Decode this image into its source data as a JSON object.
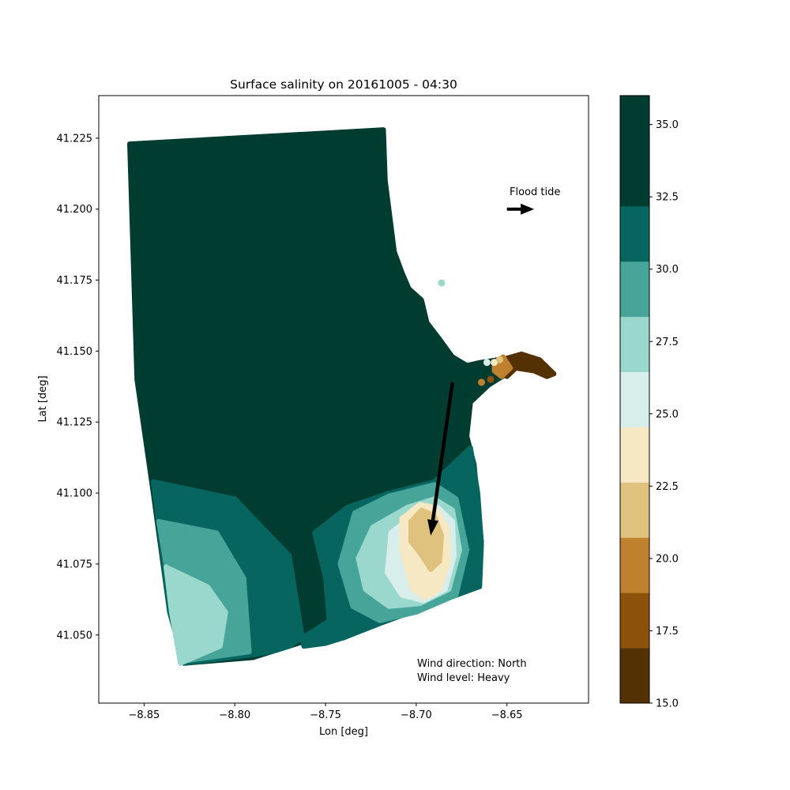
{
  "chart_data": {
    "type": "scatter",
    "title": "Surface salinity on 20161005 - 04:30",
    "xlabel": "Lon [deg]",
    "ylabel": "Lat [deg]",
    "xlim": [
      -8.875,
      -8.605
    ],
    "ylim": [
      41.026,
      41.24
    ],
    "x_ticks": [
      -8.85,
      -8.8,
      -8.75,
      -8.7,
      -8.65
    ],
    "x_tick_labels": [
      "−8.85",
      "−8.80",
      "−8.75",
      "−8.70",
      "−8.65"
    ],
    "y_ticks": [
      41.05,
      41.075,
      41.1,
      41.125,
      41.15,
      41.175,
      41.2,
      41.225
    ],
    "y_tick_labels": [
      "41.050",
      "41.075",
      "41.100",
      "41.125",
      "41.150",
      "41.175",
      "41.200",
      "41.225"
    ],
    "grid": false,
    "colorbar": {
      "levels": [
        15.0,
        16.909,
        18.818,
        20.727,
        22.636,
        24.545,
        26.455,
        28.364,
        30.273,
        32.182,
        34.091,
        36.0
      ],
      "colors": [
        "#543005",
        "#8c510a",
        "#bf812d",
        "#dfc27d",
        "#f6e8c3",
        "#d8eeeb",
        "#9ad8cd",
        "#46a598",
        "#07655f",
        "#003c30",
        "#003c30"
      ],
      "ticks": [
        15.0,
        17.5,
        20.0,
        22.5,
        25.0,
        27.5,
        30.0,
        32.5,
        35.0
      ],
      "tick_labels": [
        "15.0",
        "17.5",
        "20.0",
        "22.5",
        "25.0",
        "27.5",
        "30.0",
        "32.5",
        "35.0"
      ]
    },
    "regions": [
      {
        "salinity": 35,
        "color": "#003c30",
        "polygon": [
          [
            -8.858,
            41.223
          ],
          [
            -8.718,
            41.228
          ],
          [
            -8.717,
            41.21
          ],
          [
            -8.714,
            41.195
          ],
          [
            -8.712,
            41.185
          ],
          [
            -8.708,
            41.178
          ],
          [
            -8.704,
            41.172
          ],
          [
            -8.697,
            41.168
          ],
          [
            -8.694,
            41.16
          ],
          [
            -8.688,
            41.155
          ],
          [
            -8.68,
            41.148
          ],
          [
            -8.672,
            41.145
          ],
          [
            -8.665,
            41.146
          ],
          [
            -8.655,
            41.147
          ],
          [
            -8.65,
            41.142
          ],
          [
            -8.66,
            41.138
          ],
          [
            -8.67,
            41.132
          ],
          [
            -8.672,
            41.12
          ],
          [
            -8.668,
            41.11
          ],
          [
            -8.666,
            41.096
          ],
          [
            -8.664,
            41.083
          ],
          [
            -8.665,
            41.067
          ],
          [
            -8.79,
            41.042
          ],
          [
            -8.828,
            41.04
          ],
          [
            -8.836,
            41.058
          ],
          [
            -8.845,
            41.1
          ],
          [
            -8.854,
            41.14
          ]
        ]
      },
      {
        "salinity": 33,
        "color": "#07655f",
        "polygon": [
          [
            -8.845,
            41.104
          ],
          [
            -8.8,
            41.098
          ],
          [
            -8.77,
            41.078
          ],
          [
            -8.762,
            41.046
          ],
          [
            -8.75,
            41.047
          ],
          [
            -8.74,
            41.049
          ],
          [
            -8.72,
            41.054
          ],
          [
            -8.665,
            41.067
          ],
          [
            -8.664,
            41.082
          ],
          [
            -8.666,
            41.1
          ],
          [
            -8.67,
            41.116
          ],
          [
            -8.69,
            41.104
          ],
          [
            -8.715,
            41.1
          ],
          [
            -8.738,
            41.095
          ],
          [
            -8.756,
            41.086
          ],
          [
            -8.75,
            41.07
          ],
          [
            -8.748,
            41.055
          ],
          [
            -8.77,
            41.046
          ],
          [
            -8.78,
            41.044
          ],
          [
            -8.79,
            41.043
          ],
          [
            -8.828,
            41.04
          ],
          [
            -8.836,
            41.058
          ]
        ]
      },
      {
        "salinity": 31,
        "color": "#46a598",
        "polygon": [
          [
            -8.842,
            41.09
          ],
          [
            -8.81,
            41.086
          ],
          [
            -8.795,
            41.07
          ],
          [
            -8.792,
            41.044
          ],
          [
            -8.826,
            41.041
          ],
          [
            -8.834,
            41.06
          ]
        ]
      },
      {
        "salinity": 29,
        "color": "#9ad8cd",
        "polygon": [
          [
            -8.838,
            41.074
          ],
          [
            -8.815,
            41.067
          ],
          [
            -8.805,
            41.058
          ],
          [
            -8.808,
            41.046
          ],
          [
            -8.83,
            41.04
          ],
          [
            -8.835,
            41.058
          ]
        ]
      },
      {
        "salinity": 31,
        "color": "#46a598",
        "polygon": [
          [
            -8.734,
            41.093
          ],
          [
            -8.715,
            41.099
          ],
          [
            -8.69,
            41.103
          ],
          [
            -8.678,
            41.098
          ],
          [
            -8.672,
            41.08
          ],
          [
            -8.678,
            41.064
          ],
          [
            -8.7,
            41.058
          ],
          [
            -8.72,
            41.055
          ],
          [
            -8.735,
            41.06
          ],
          [
            -8.742,
            41.075
          ]
        ]
      },
      {
        "salinity": 29,
        "color": "#9ad8cd",
        "polygon": [
          [
            -8.724,
            41.088
          ],
          [
            -8.705,
            41.095
          ],
          [
            -8.69,
            41.098
          ],
          [
            -8.68,
            41.094
          ],
          [
            -8.676,
            41.08
          ],
          [
            -8.682,
            41.066
          ],
          [
            -8.698,
            41.061
          ],
          [
            -8.715,
            41.06
          ],
          [
            -8.728,
            41.066
          ],
          [
            -8.732,
            41.077
          ]
        ]
      },
      {
        "salinity": 27,
        "color": "#d8eeeb",
        "polygon": [
          [
            -8.714,
            41.086
          ],
          [
            -8.7,
            41.093
          ],
          [
            -8.688,
            41.095
          ],
          [
            -8.68,
            41.09
          ],
          [
            -8.679,
            41.078
          ],
          [
            -8.684,
            41.066
          ],
          [
            -8.696,
            41.062
          ],
          [
            -8.708,
            41.064
          ],
          [
            -8.716,
            41.072
          ]
        ]
      },
      {
        "salinity": 25,
        "color": "#f6e8c3",
        "polygon": [
          [
            -8.708,
            41.091
          ],
          [
            -8.698,
            41.096
          ],
          [
            -8.69,
            41.095
          ],
          [
            -8.683,
            41.088
          ],
          [
            -8.682,
            41.076
          ],
          [
            -8.687,
            41.066
          ],
          [
            -8.695,
            41.063
          ],
          [
            -8.702,
            41.066
          ],
          [
            -8.708,
            41.08
          ]
        ]
      },
      {
        "salinity": 23,
        "color": "#dfc27d",
        "polygon": [
          [
            -8.703,
            41.09
          ],
          [
            -8.697,
            41.094
          ],
          [
            -8.69,
            41.092
          ],
          [
            -8.686,
            41.085
          ],
          [
            -8.687,
            41.076
          ],
          [
            -8.692,
            41.073
          ],
          [
            -8.697,
            41.078
          ],
          [
            -8.703,
            41.083
          ]
        ]
      },
      {
        "salinity": 16,
        "color": "#543005",
        "polygon": [
          [
            -8.653,
            41.147
          ],
          [
            -8.642,
            41.149
          ],
          [
            -8.632,
            41.147
          ],
          [
            -8.624,
            41.142
          ],
          [
            -8.628,
            41.141
          ],
          [
            -8.635,
            41.143
          ],
          [
            -8.645,
            41.144
          ],
          [
            -8.65,
            41.141
          ]
        ]
      },
      {
        "salinity": 21,
        "color": "#bf812d",
        "polygon": [
          [
            -8.657,
            41.146
          ],
          [
            -8.652,
            41.148
          ],
          [
            -8.648,
            41.144
          ],
          [
            -8.653,
            41.141
          ],
          [
            -8.657,
            41.143
          ]
        ]
      }
    ],
    "river_plume_points": [
      {
        "lon": -8.661,
        "lat": 41.146,
        "color": "#d8eeeb"
      },
      {
        "lon": -8.657,
        "lat": 41.146,
        "color": "#f6e8c3"
      },
      {
        "lon": -8.654,
        "lat": 41.147,
        "color": "#dfc27d"
      },
      {
        "lon": -8.664,
        "lat": 41.139,
        "color": "#bf812d"
      },
      {
        "lon": -8.659,
        "lat": 41.14,
        "color": "#8c510a"
      },
      {
        "lon": -8.686,
        "lat": 41.174,
        "color": "#9ad8cd"
      }
    ],
    "annotations": [
      {
        "id": "wind-arrow",
        "text": "",
        "from": [
          -8.68,
          41.139
        ],
        "to": [
          -8.692,
          41.085
        ]
      },
      {
        "id": "tide-arrow",
        "text": "Flood tide",
        "from": [
          -8.65,
          41.2
        ],
        "to": [
          -8.635,
          41.2
        ]
      },
      {
        "id": "wind-direction",
        "text": "Wind direction: North"
      },
      {
        "id": "wind-level",
        "text": "Wind level: Heavy"
      }
    ]
  }
}
